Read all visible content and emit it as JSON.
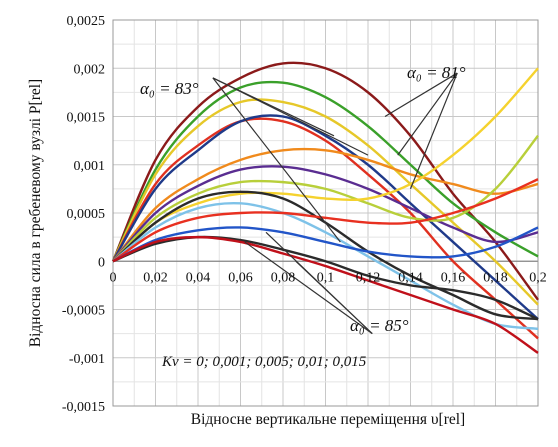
{
  "chart_data": {
    "type": "line",
    "title": "",
    "xlabel": "Відносне вертикальне переміщення υ[rel]",
    "ylabel": "Відносна сила в гребеневому вузлі P[rel]",
    "xlim": [
      0,
      0.2
    ],
    "ylim": [
      -0.0015,
      0.0025
    ],
    "x_ticks": [
      "0",
      "0,02",
      "0,04",
      "0,06",
      "0,08",
      "0,1",
      "0,12",
      "0,14",
      "0,16",
      "0,18",
      "0,2"
    ],
    "y_ticks": [
      "0,0025",
      "0,002",
      "0,0015",
      "0,001",
      "0,0005",
      "0",
      "-0,0005",
      "-0,001",
      "-0,0015"
    ],
    "grid": true,
    "annotations": {
      "a83": "α₀ = 83°",
      "a81": "α₀ = 81°",
      "a85": "α₀ = 85°",
      "kv": "Kv = 0; 0,001; 0,005; 0,01; 0,015"
    },
    "series": [
      {
        "color": "#8b1a1a",
        "points": [
          [
            0,
            0
          ],
          [
            0.02,
            0.00105
          ],
          [
            0.04,
            0.0016
          ],
          [
            0.06,
            0.0019
          ],
          [
            0.08,
            0.00205
          ],
          [
            0.1,
            0.002
          ],
          [
            0.12,
            0.00175
          ],
          [
            0.14,
            0.0013
          ],
          [
            0.16,
            0.0007
          ],
          [
            0.18,
            0.0002
          ],
          [
            0.2,
            -0.0004
          ]
        ]
      },
      {
        "color": "#3aa02a",
        "points": [
          [
            0,
            0
          ],
          [
            0.02,
            0.00095
          ],
          [
            0.04,
            0.0015
          ],
          [
            0.06,
            0.0018
          ],
          [
            0.08,
            0.00185
          ],
          [
            0.1,
            0.0017
          ],
          [
            0.12,
            0.0014
          ],
          [
            0.14,
            0.001
          ],
          [
            0.16,
            0.0006
          ],
          [
            0.18,
            0.0003
          ],
          [
            0.2,
            5e-05
          ]
        ]
      },
      {
        "color": "#e6c829",
        "points": [
          [
            0,
            0
          ],
          [
            0.02,
            0.0009
          ],
          [
            0.04,
            0.0014
          ],
          [
            0.06,
            0.00165
          ],
          [
            0.08,
            0.00165
          ],
          [
            0.1,
            0.0015
          ],
          [
            0.12,
            0.0012
          ],
          [
            0.14,
            0.0008
          ],
          [
            0.16,
            0.0004
          ],
          [
            0.18,
            0.0
          ],
          [
            0.2,
            -0.00045
          ]
        ]
      },
      {
        "color": "#e03020",
        "points": [
          [
            0,
            0
          ],
          [
            0.02,
            0.0008
          ],
          [
            0.04,
            0.0012
          ],
          [
            0.06,
            0.00145
          ],
          [
            0.08,
            0.00145
          ],
          [
            0.1,
            0.00125
          ],
          [
            0.12,
            0.0009
          ],
          [
            0.14,
            0.0005
          ],
          [
            0.16,
            0.0
          ],
          [
            0.18,
            -0.0004
          ],
          [
            0.2,
            -0.0008
          ]
        ]
      },
      {
        "color": "#1f3a8a",
        "points": [
          [
            0,
            0
          ],
          [
            0.02,
            0.00075
          ],
          [
            0.04,
            0.00115
          ],
          [
            0.06,
            0.00145
          ],
          [
            0.08,
            0.0015
          ],
          [
            0.1,
            0.0013
          ],
          [
            0.12,
            0.001
          ],
          [
            0.14,
            0.0006
          ],
          [
            0.16,
            0.0002
          ],
          [
            0.18,
            -0.0002
          ],
          [
            0.2,
            -0.0006
          ]
        ]
      },
      {
        "color": "#f08a1c",
        "points": [
          [
            0,
            0
          ],
          [
            0.02,
            0.00055
          ],
          [
            0.04,
            0.00085
          ],
          [
            0.06,
            0.00105
          ],
          [
            0.08,
            0.00115
          ],
          [
            0.1,
            0.00115
          ],
          [
            0.12,
            0.00105
          ],
          [
            0.14,
            0.0009
          ],
          [
            0.16,
            0.0008
          ],
          [
            0.18,
            0.0007
          ],
          [
            0.2,
            0.0008
          ]
        ]
      },
      {
        "color": "#5a2d91",
        "points": [
          [
            0,
            0
          ],
          [
            0.02,
            0.0005
          ],
          [
            0.04,
            0.00078
          ],
          [
            0.06,
            0.00095
          ],
          [
            0.08,
            0.00098
          ],
          [
            0.1,
            0.0009
          ],
          [
            0.12,
            0.00075
          ],
          [
            0.14,
            0.00055
          ],
          [
            0.16,
            0.00035
          ],
          [
            0.18,
            0.0002
          ],
          [
            0.2,
            0.0003
          ]
        ]
      },
      {
        "color": "#b8cf3a",
        "points": [
          [
            0,
            0
          ],
          [
            0.02,
            0.00045
          ],
          [
            0.04,
            0.0007
          ],
          [
            0.06,
            0.00082
          ],
          [
            0.08,
            0.00082
          ],
          [
            0.1,
            0.00075
          ],
          [
            0.12,
            0.0006
          ],
          [
            0.14,
            0.00045
          ],
          [
            0.16,
            0.00045
          ],
          [
            0.18,
            0.00075
          ],
          [
            0.2,
            0.0013
          ]
        ]
      },
      {
        "color": "#f5d22e",
        "points": [
          [
            0,
            0
          ],
          [
            0.02,
            0.0004
          ],
          [
            0.04,
            0.0006
          ],
          [
            0.06,
            0.0007
          ],
          [
            0.08,
            0.0007
          ],
          [
            0.1,
            0.00065
          ],
          [
            0.12,
            0.00065
          ],
          [
            0.14,
            0.0008
          ],
          [
            0.16,
            0.0011
          ],
          [
            0.18,
            0.0015
          ],
          [
            0.2,
            0.002
          ]
        ]
      },
      {
        "color": "#2b2b2b",
        "points": [
          [
            0,
            0
          ],
          [
            0.02,
            0.0004
          ],
          [
            0.04,
            0.00065
          ],
          [
            0.06,
            0.00072
          ],
          [
            0.08,
            0.00065
          ],
          [
            0.1,
            0.0004
          ],
          [
            0.12,
            0.0001
          ],
          [
            0.14,
            -0.00015
          ],
          [
            0.16,
            -0.00035
          ],
          [
            0.18,
            -0.00055
          ],
          [
            0.2,
            -0.0006
          ]
        ]
      },
      {
        "color": "#7ec2e8",
        "points": [
          [
            0,
            0
          ],
          [
            0.02,
            0.00035
          ],
          [
            0.04,
            0.00055
          ],
          [
            0.06,
            0.0006
          ],
          [
            0.08,
            0.0005
          ],
          [
            0.1,
            0.0003
          ],
          [
            0.12,
            5e-05
          ],
          [
            0.14,
            -0.0002
          ],
          [
            0.16,
            -0.00045
          ],
          [
            0.18,
            -0.00065
          ],
          [
            0.2,
            -0.0007
          ]
        ]
      },
      {
        "color": "#e83020",
        "points": [
          [
            0,
            0
          ],
          [
            0.02,
            0.0003
          ],
          [
            0.04,
            0.00045
          ],
          [
            0.06,
            0.0005
          ],
          [
            0.08,
            0.0005
          ],
          [
            0.1,
            0.00045
          ],
          [
            0.12,
            0.0004
          ],
          [
            0.14,
            0.0004
          ],
          [
            0.16,
            0.0005
          ],
          [
            0.18,
            0.00065
          ],
          [
            0.2,
            0.00085
          ]
        ]
      },
      {
        "color": "#2255c8",
        "points": [
          [
            0,
            0
          ],
          [
            0.02,
            0.00022
          ],
          [
            0.04,
            0.00032
          ],
          [
            0.06,
            0.00035
          ],
          [
            0.08,
            0.0003
          ],
          [
            0.1,
            0.0002
          ],
          [
            0.12,
            0.0001
          ],
          [
            0.14,
            5e-05
          ],
          [
            0.16,
            5e-05
          ],
          [
            0.18,
            0.00015
          ],
          [
            0.2,
            0.00035
          ]
        ]
      },
      {
        "color": "#2b2b2b",
        "points": [
          [
            0,
            0
          ],
          [
            0.02,
            0.00018
          ],
          [
            0.04,
            0.00025
          ],
          [
            0.06,
            0.00022
          ],
          [
            0.08,
            0.00012
          ],
          [
            0.1,
            0.0
          ],
          [
            0.12,
            -0.00015
          ],
          [
            0.14,
            -0.00025
          ],
          [
            0.16,
            -0.0003
          ],
          [
            0.18,
            -0.0004
          ],
          [
            0.2,
            -0.0006
          ]
        ]
      },
      {
        "color": "#c0101a",
        "points": [
          [
            0,
            0
          ],
          [
            0.02,
            0.0002
          ],
          [
            0.04,
            0.00025
          ],
          [
            0.06,
            0.0002
          ],
          [
            0.08,
            8e-05
          ],
          [
            0.1,
            -5e-05
          ],
          [
            0.12,
            -0.0002
          ],
          [
            0.14,
            -0.00035
          ],
          [
            0.16,
            -0.0005
          ],
          [
            0.18,
            -0.00065
          ],
          [
            0.2,
            -0.00095
          ]
        ]
      }
    ]
  }
}
